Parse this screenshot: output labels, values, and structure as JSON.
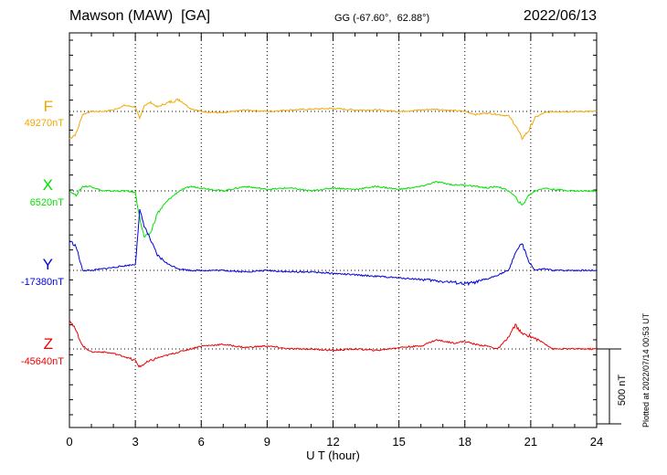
{
  "header": {
    "station": "Mawson (MAW)  [GA]",
    "coords": "GG (-67.60°,  62.88°)",
    "date": "2022/06/13"
  },
  "footer": {
    "plotted": "Plotted at 2022/07/14 00:53 UT"
  },
  "chart_data": {
    "type": "line",
    "xlabel": "U T (hour)",
    "xlim": [
      0,
      24
    ],
    "xticks": [
      0,
      3,
      6,
      9,
      12,
      15,
      18,
      21,
      24
    ],
    "scale_bar": {
      "label": "500 nT",
      "value_nT": 500
    },
    "grid": "vertical dotted lines every 3 h; dotted baseline per component",
    "x_hours": [
      0,
      0.3,
      0.6,
      1,
      1.5,
      2,
      2.5,
      3,
      3.2,
      3.4,
      3.7,
      4,
      4.5,
      5,
      5.5,
      6,
      7,
      8,
      9,
      10,
      11,
      12,
      13,
      14,
      15,
      16,
      16.7,
      17.5,
      18,
      18.5,
      19,
      19.5,
      20,
      20.3,
      20.6,
      20.9,
      21.2,
      21.6,
      22,
      23,
      24
    ],
    "series": [
      {
        "name": "F",
        "base": "49270nT",
        "color": "#f0a800",
        "values": [
          -180,
          -150,
          -20,
          0,
          0,
          10,
          40,
          30,
          -50,
          40,
          60,
          30,
          60,
          80,
          20,
          0,
          -10,
          10,
          0,
          10,
          15,
          20,
          10,
          10,
          0,
          10,
          15,
          5,
          0,
          -20,
          -10,
          -20,
          -30,
          -90,
          -180,
          -130,
          -40,
          -10,
          0,
          0,
          0
        ]
      },
      {
        "name": "X",
        "base": "6520nT",
        "color": "#00e000",
        "values": [
          0,
          -30,
          30,
          30,
          0,
          0,
          0,
          -10,
          -180,
          -310,
          -280,
          -150,
          -60,
          0,
          30,
          20,
          0,
          30,
          10,
          20,
          0,
          20,
          10,
          30,
          10,
          30,
          60,
          40,
          40,
          30,
          20,
          30,
          0,
          -40,
          -100,
          -30,
          0,
          20,
          10,
          0,
          0
        ]
      },
      {
        "name": "Y",
        "base": "-17380nT",
        "color": "#0000e0",
        "values": [
          200,
          160,
          0,
          0,
          10,
          20,
          30,
          40,
          400,
          300,
          200,
          100,
          40,
          10,
          0,
          0,
          0,
          -10,
          0,
          -10,
          -10,
          -20,
          -30,
          -40,
          -50,
          -60,
          -70,
          -80,
          -90,
          -80,
          -60,
          -30,
          0,
          120,
          180,
          60,
          0,
          10,
          0,
          0,
          0
        ]
      },
      {
        "name": "Z",
        "base": "-45640nT",
        "color": "#ee0000",
        "values": [
          200,
          120,
          20,
          -20,
          -20,
          -30,
          -50,
          -80,
          -120,
          -100,
          -80,
          -60,
          -40,
          -20,
          0,
          20,
          30,
          10,
          20,
          0,
          0,
          -10,
          0,
          -10,
          10,
          20,
          60,
          40,
          50,
          30,
          20,
          0,
          80,
          160,
          100,
          90,
          70,
          40,
          0,
          0,
          0
        ]
      }
    ]
  }
}
